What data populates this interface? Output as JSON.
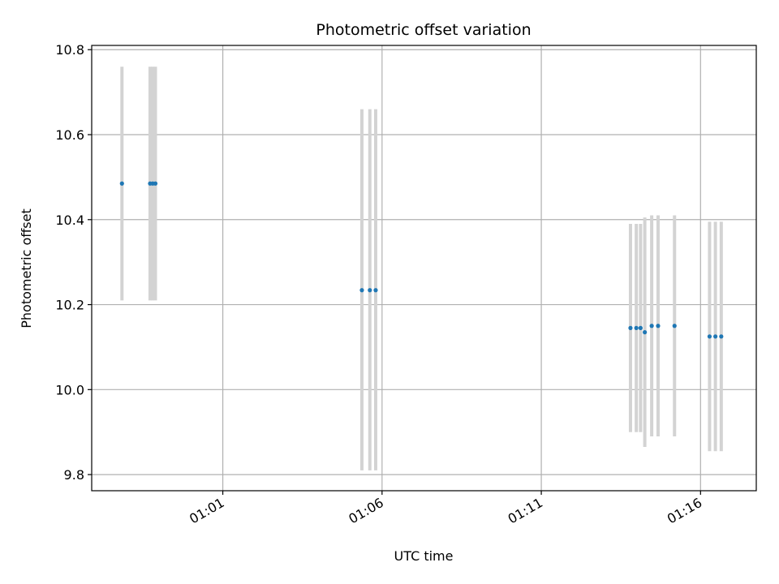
{
  "chart_data": {
    "type": "scatter",
    "title": "Photometric offset variation",
    "xlabel": "UTC time",
    "ylabel": "Photometric offset",
    "x_ticks": [
      "01:01",
      "01:06",
      "01:11",
      "01:16"
    ],
    "y_ticks": [
      "9.8",
      "10.0",
      "10.2",
      "10.4",
      "10.6",
      "10.8"
    ],
    "xlim": [
      "00:56:53",
      "01:17:45"
    ],
    "ylim": [
      9.762,
      10.81
    ],
    "grid": true,
    "colors": {
      "points": "#1f77b4",
      "errorbars": "#d3d3d3",
      "grid": "#b0b0b0"
    },
    "points": [
      {
        "x": "00:57:50",
        "y": 10.485,
        "ylow": 10.21,
        "yhigh": 10.76
      },
      {
        "x": "00:58:43",
        "y": 10.485,
        "ylow": 10.21,
        "yhigh": 10.76
      },
      {
        "x": "00:58:48",
        "y": 10.485,
        "ylow": 10.21,
        "yhigh": 10.76
      },
      {
        "x": "00:58:53",
        "y": 10.485,
        "ylow": 10.21,
        "yhigh": 10.76
      },
      {
        "x": "01:05:22",
        "y": 10.234,
        "ylow": 9.81,
        "yhigh": 10.66
      },
      {
        "x": "01:05:37",
        "y": 10.234,
        "ylow": 9.81,
        "yhigh": 10.66
      },
      {
        "x": "01:05:48",
        "y": 10.234,
        "ylow": 9.81,
        "yhigh": 10.66
      },
      {
        "x": "01:13:48",
        "y": 10.145,
        "ylow": 9.9,
        "yhigh": 10.39
      },
      {
        "x": "01:13:59",
        "y": 10.145,
        "ylow": 9.9,
        "yhigh": 10.39
      },
      {
        "x": "01:14:07",
        "y": 10.145,
        "ylow": 9.9,
        "yhigh": 10.39
      },
      {
        "x": "01:14:15",
        "y": 10.135,
        "ylow": 9.865,
        "yhigh": 10.405
      },
      {
        "x": "01:14:28",
        "y": 10.15,
        "ylow": 9.89,
        "yhigh": 10.41
      },
      {
        "x": "01:14:40",
        "y": 10.15,
        "ylow": 9.89,
        "yhigh": 10.41
      },
      {
        "x": "01:15:11",
        "y": 10.15,
        "ylow": 9.89,
        "yhigh": 10.41
      },
      {
        "x": "01:16:17",
        "y": 10.125,
        "ylow": 9.855,
        "yhigh": 10.395
      },
      {
        "x": "01:16:28",
        "y": 10.125,
        "ylow": 9.855,
        "yhigh": 10.395
      },
      {
        "x": "01:16:39",
        "y": 10.125,
        "ylow": 9.855,
        "yhigh": 10.395
      }
    ]
  }
}
